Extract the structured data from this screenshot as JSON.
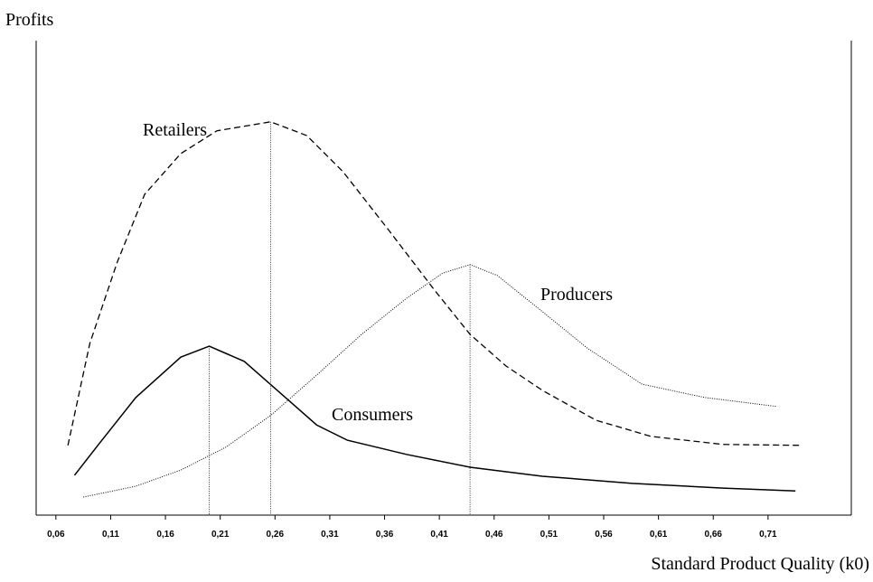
{
  "chart_data": {
    "type": "line",
    "ylabel": "Profits",
    "xlabel": "Standard Product Quality (k0)",
    "xlim": [
      0.042,
      0.786
    ],
    "ylim": [
      0,
      100
    ],
    "xticks": [
      {
        "value": 0.06,
        "label": "0,06"
      },
      {
        "value": 0.11,
        "label": "0,11"
      },
      {
        "value": 0.16,
        "label": "0,16"
      },
      {
        "value": 0.21,
        "label": "0,21"
      },
      {
        "value": 0.26,
        "label": "0,26"
      },
      {
        "value": 0.31,
        "label": "0,31"
      },
      {
        "value": 0.36,
        "label": "0,36"
      },
      {
        "value": 0.41,
        "label": "0,41"
      },
      {
        "value": 0.46,
        "label": "0,46"
      },
      {
        "value": 0.51,
        "label": "0,51"
      },
      {
        "value": 0.56,
        "label": "0,56"
      },
      {
        "value": 0.61,
        "label": "0,61"
      },
      {
        "value": 0.66,
        "label": "0,66"
      },
      {
        "value": 0.71,
        "label": "0,71"
      }
    ],
    "series": [
      {
        "name": "Retailers",
        "color": "#000000",
        "style": "dashed",
        "x": [
          0.071,
          0.091,
          0.116,
          0.141,
          0.174,
          0.207,
          0.256,
          0.289,
          0.322,
          0.364,
          0.405,
          0.438,
          0.471,
          0.504,
          0.553,
          0.603,
          0.669,
          0.741
        ],
        "values": [
          14.7,
          36.2,
          53.3,
          67.6,
          76.2,
          81.0,
          82.9,
          80.0,
          72.4,
          60.0,
          47.6,
          38.1,
          31.4,
          26.3,
          20.0,
          16.6,
          14.9,
          14.7
        ]
      },
      {
        "name": "Consumers",
        "color": "#000000",
        "style": "solid",
        "x": [
          0.077,
          0.1,
          0.133,
          0.174,
          0.2,
          0.232,
          0.265,
          0.298,
          0.326,
          0.38,
          0.438,
          0.504,
          0.586,
          0.669,
          0.735
        ],
        "values": [
          8.4,
          15.2,
          24.8,
          33.3,
          35.6,
          32.4,
          25.7,
          19.0,
          15.8,
          12.8,
          10.1,
          8.2,
          6.7,
          5.7,
          5.1
        ]
      },
      {
        "name": "Producers",
        "color": "#000000",
        "style": "dotted",
        "x": [
          0.085,
          0.133,
          0.174,
          0.215,
          0.256,
          0.298,
          0.339,
          0.38,
          0.413,
          0.438,
          0.463,
          0.504,
          0.545,
          0.595,
          0.652,
          0.718
        ],
        "values": [
          3.8,
          6.1,
          9.5,
          14.3,
          21.0,
          29.5,
          38.1,
          45.7,
          51.0,
          52.8,
          50.5,
          42.9,
          35.2,
          27.6,
          24.8,
          22.9
        ]
      }
    ]
  }
}
